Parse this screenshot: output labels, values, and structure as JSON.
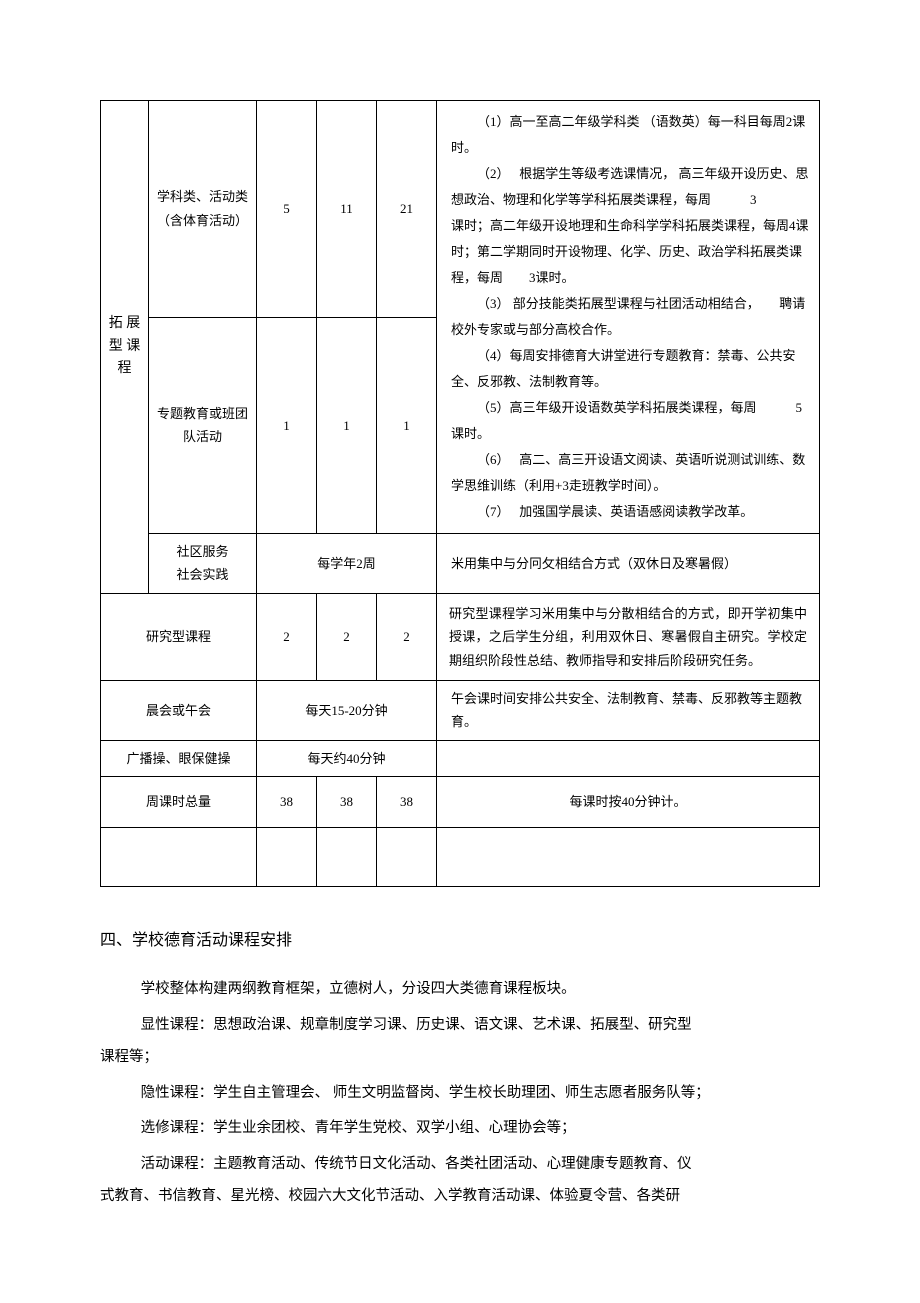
{
  "table": {
    "group_label": "拓 展 型 课 程",
    "row1": {
      "label": "学科类、活动类（含体育活动）",
      "c1": "5",
      "c2": "11",
      "c3": "21"
    },
    "row2": {
      "label": "专题教育或班团队活动",
      "c1": "1",
      "c2": "1",
      "c3": "1"
    },
    "notes": {
      "p1a": "（1）高一至高二年级学科类 （语数英）每一科目每周2课时。",
      "p1b": "（2）　 根据学生等级考选课情况，  高三年级开设历史、思想政治、物理和化学等学科拓展类课程，每周　　　3",
      "p2a": "课时；高二年级开设地理和生命科学学科拓展类课程，每周4课时；第二学期同时开设物理、化学、历史、政治学科拓展类课程，每周　　3课时。",
      "p3": "（3）  部分技能类拓展型课程与社团活动相结合，　　聘请校外专家或与部分高校合作。",
      "p4": "（4）每周安排德育大讲堂进行专题教育：禁毒、公共安全、反邪教、法制教育等。",
      "p5": "（5）高三年级开设语数英学科拓展类课程，每周　　　5课时。",
      "p6": "（6）　 高二、高三开设语文阅读、英语听说测试训练、数学思维训练（利用+3走班教学时间）。",
      "p7": "（7）　 加强国学晨读、英语语感阅读教学改革。"
    },
    "row3": {
      "label": "社区服务\n社会实践",
      "span": "每学年2周",
      "note": "米用集中与分冋攵相结合方式（双休日及寒暑假）"
    },
    "row4": {
      "label": "研究型课程",
      "c1": "2",
      "c2": "2",
      "c3": "2",
      "note": "研究型课程学习米用集中与分散相结合的方式，即开学初集中授课，之后学生分组，利用双休日、寒暑假自主研究。学校定期组织阶段性总结、教师指导和安排后阶段研究任务。"
    },
    "row5": {
      "label": "晨会或午会",
      "span": "每天15-20分钟",
      "note": "午会课时间安排公共安全、法制教育、禁毒、反邪教等主题教育。"
    },
    "row6": {
      "label": "广播操、眼保健操",
      "span": "每天约40分钟",
      "note": ""
    },
    "row7": {
      "label": "周课时总量",
      "c1": "38",
      "c2": "38",
      "c3": "38",
      "note": "每课时按40分钟计。"
    }
  },
  "section": {
    "title": "四、学校德育活动课程安排",
    "p1": "学校整体构建两纲教育框架，立德树人，分设四大类德育课程板块。",
    "p2": "显性课程：思想政治课、规章制度学习课、历史课、语文课、艺术课、拓展型、研究型课程等；",
    "p3": "隐性课程：学生自主管理会、 师生文明监督岗、学生校长助理团、师生志愿者服务队等；",
    "p4": "选修课程：学生业余团校、青年学生党校、双学小组、心理协会等；",
    "p5": "活动课程：主题教育活动、传统节日文化活动、各类社团活动、心理健康专题教育、仪式教育、书信教育、星光榜、校园六大文化节活动、入学教育活动课、体验夏令营、各类研"
  }
}
